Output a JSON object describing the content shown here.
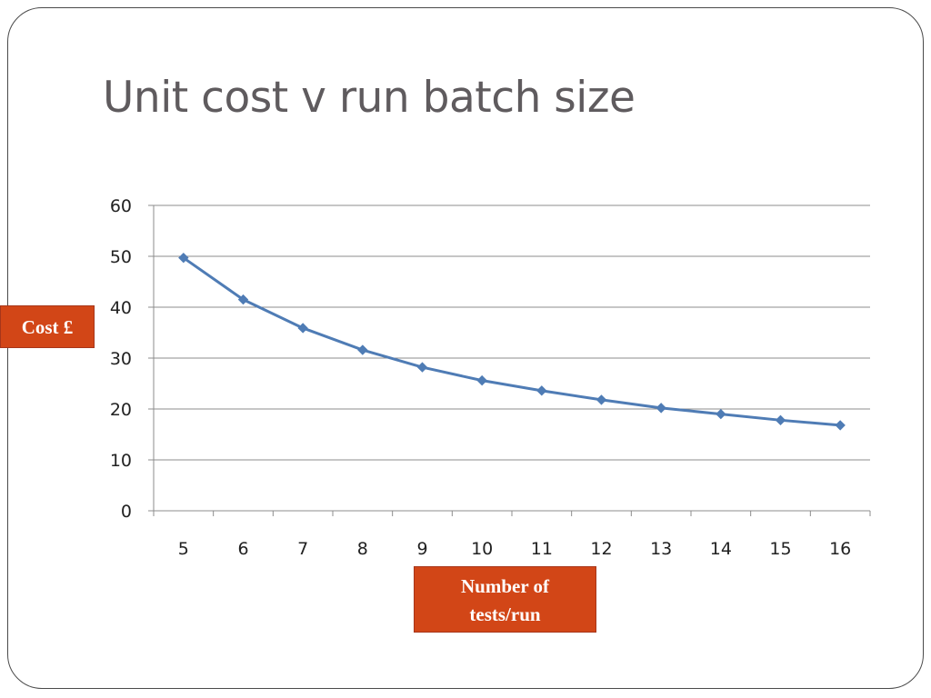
{
  "slide": {
    "title": "Unit cost v run batch size"
  },
  "labels": {
    "y_callout": "Cost £",
    "x_callout_line1": "Number of",
    "x_callout_line2": "tests/run"
  },
  "colors": {
    "series": "#4f7cb5",
    "grid": "#8c8c8c",
    "callout_bg": "#d24617",
    "title": "#5f5b5e"
  },
  "chart_data": {
    "type": "line",
    "categories": [
      "5",
      "6",
      "7",
      "8",
      "9",
      "10",
      "11",
      "12",
      "13",
      "14",
      "15",
      "16"
    ],
    "series": [
      {
        "values": [
          49.7,
          41.5,
          35.9,
          31.6,
          28.2,
          25.6,
          23.6,
          21.8,
          20.2,
          19.0,
          17.8,
          16.8
        ]
      }
    ],
    "ylim": [
      0,
      60
    ],
    "yticks": [
      0,
      10,
      20,
      30,
      40,
      50,
      60
    ],
    "grid": true,
    "marker": "diamond",
    "legend": "none"
  }
}
